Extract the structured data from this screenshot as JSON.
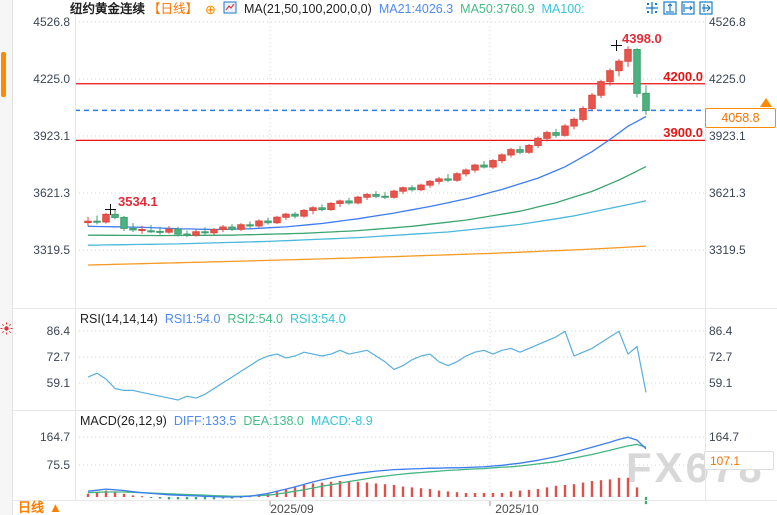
{
  "header": {
    "title": "纽约黄金连续",
    "period": "【日线】",
    "plus": "⊕",
    "ma_settings": "MA(21,50,100,200,0,0)",
    "ma21": "MA21:4026.3",
    "ma50": "MA50:3760.9",
    "ma100": "MA100:"
  },
  "toolbar": {
    "icons": [
      "crosshair",
      "fit-vertical",
      "fit-horizontal",
      "pan-right"
    ]
  },
  "sidebar": {
    "icons": [
      "orange-marker-bar",
      "sun-badge"
    ]
  },
  "rsi_header": {
    "name": "RSI(14,14,14)",
    "rsi1": "RSI1:54.0",
    "rsi2": "RSI2:54.0",
    "rsi3": "RSI3:54.0"
  },
  "macd_header": {
    "name": "MACD(26,12,9)",
    "diff": "DIFF:133.5",
    "dea": "DEA:138.0",
    "macd": "MACD:-8.9"
  },
  "axes": {
    "price": [
      "4526.8",
      "4225.0",
      "3923.1",
      "3621.3",
      "3319.5"
    ],
    "rsi": [
      "86.4",
      "72.7",
      "59.1"
    ],
    "macd_left": [
      "164.7",
      "75.5"
    ],
    "macd_right": [
      "164.7"
    ],
    "dates": [
      "2025/09",
      "2025/10"
    ]
  },
  "annotations": {
    "peak_price": "4398.0",
    "early_peak_price": "3534.1",
    "upper_line_price": "4200.0",
    "lower_line_price": "3900.0",
    "current_price": "4058.8",
    "macd_highlight": "107.1"
  },
  "footer": {
    "tab": "日线",
    "arrow": "▲"
  },
  "watermark": "FX678",
  "colors": {
    "up": "#e8534c",
    "up_stroke": "#dc4840",
    "down": "#4cb27f",
    "down_stroke": "#3f9e6e",
    "ma21": "#3d7df0",
    "ma50": "#3aa56f",
    "ma100": "#49b8dc",
    "ma200": "#f59a23",
    "sr_line": "#ee1212",
    "current_dashed": "#2b7de9",
    "accent_orange": "#ff8a00",
    "rsi_line": "#58aede",
    "macd_diff": "#3d7df0",
    "macd_dea": "#43b581",
    "hist_pos": "#e0504a",
    "hist_neg": "#43a86f",
    "grid": "#d4d4d4"
  },
  "chart_data": {
    "type": "candlestick",
    "title": "纽约黄金连续 日线",
    "price_axis_ticks": [
      4526.8,
      4225.0,
      3923.1,
      3621.3,
      3319.5
    ],
    "rsi_axis_ticks": [
      86.4,
      72.7,
      59.1
    ],
    "macd_axis_ticks": [
      164.7,
      75.5
    ],
    "x_tick_labels": [
      "2025/09",
      "2025/10"
    ],
    "horizontal_lines": [
      4200.0,
      3900.0
    ],
    "current_price_line": 4058.8,
    "marked_highs": [
      {
        "index": 3,
        "price": 3534.1
      },
      {
        "index": 60,
        "price": 4398.0
      }
    ],
    "candles_ohlc": [
      [
        3465,
        3495,
        3445,
        3472
      ],
      [
        3472,
        3502,
        3455,
        3468
      ],
      [
        3468,
        3516,
        3460,
        3508
      ],
      [
        3508,
        3534,
        3482,
        3492
      ],
      [
        3492,
        3500,
        3420,
        3434
      ],
      [
        3434,
        3462,
        3415,
        3426
      ],
      [
        3426,
        3448,
        3405,
        3428
      ],
      [
        3421,
        3452,
        3410,
        3418
      ],
      [
        3418,
        3442,
        3400,
        3414
      ],
      [
        3414,
        3446,
        3406,
        3430
      ],
      [
        3430,
        3442,
        3392,
        3404
      ],
      [
        3404,
        3422,
        3388,
        3398
      ],
      [
        3398,
        3428,
        3390,
        3416
      ],
      [
        3416,
        3440,
        3400,
        3411
      ],
      [
        3411,
        3436,
        3398,
        3428
      ],
      [
        3428,
        3452,
        3414,
        3441
      ],
      [
        3441,
        3456,
        3420,
        3429
      ],
      [
        3429,
        3462,
        3421,
        3453
      ],
      [
        3453,
        3471,
        3434,
        3447
      ],
      [
        3447,
        3481,
        3439,
        3473
      ],
      [
        3473,
        3491,
        3454,
        3464
      ],
      [
        3464,
        3501,
        3457,
        3493
      ],
      [
        3493,
        3516,
        3479,
        3509
      ],
      [
        3509,
        3521,
        3487,
        3499
      ],
      [
        3499,
        3536,
        3491,
        3529
      ],
      [
        3529,
        3551,
        3509,
        3543
      ],
      [
        3543,
        3561,
        3524,
        3534
      ],
      [
        3534,
        3573,
        3527,
        3566
      ],
      [
        3566,
        3586,
        3547,
        3579
      ],
      [
        3579,
        3596,
        3559,
        3569
      ],
      [
        3569,
        3606,
        3561,
        3599
      ],
      [
        3599,
        3621,
        3584,
        3613
      ],
      [
        3613,
        3631,
        3594,
        3604
      ],
      [
        3604,
        3626,
        3589,
        3599
      ],
      [
        3599,
        3639,
        3591,
        3631
      ],
      [
        3631,
        3656,
        3617,
        3649
      ],
      [
        3649,
        3663,
        3629,
        3639
      ],
      [
        3639,
        3671,
        3631,
        3663
      ],
      [
        3663,
        3691,
        3649,
        3683
      ],
      [
        3683,
        3706,
        3667,
        3696
      ],
      [
        3696,
        3721,
        3679,
        3689
      ],
      [
        3689,
        3731,
        3681,
        3723
      ],
      [
        3723,
        3751,
        3709,
        3743
      ],
      [
        3743,
        3776,
        3729,
        3769
      ],
      [
        3769,
        3791,
        3751,
        3759
      ],
      [
        3759,
        3801,
        3749,
        3793
      ],
      [
        3793,
        3831,
        3779,
        3823
      ],
      [
        3823,
        3861,
        3809,
        3851
      ],
      [
        3851,
        3871,
        3827,
        3837
      ],
      [
        3837,
        3881,
        3829,
        3873
      ],
      [
        3873,
        3921,
        3859,
        3911
      ],
      [
        3911,
        3951,
        3894,
        3941
      ],
      [
        3941,
        3961,
        3914,
        3927
      ],
      [
        3927,
        3986,
        3919,
        3976
      ],
      [
        3976,
        4021,
        3959,
        4011
      ],
      [
        4011,
        4081,
        3999,
        4069
      ],
      [
        4069,
        4151,
        4054,
        4139
      ],
      [
        4139,
        4221,
        4124,
        4211
      ],
      [
        4211,
        4281,
        4189,
        4269
      ],
      [
        4269,
        4331,
        4239,
        4319
      ],
      [
        4319,
        4398,
        4289,
        4381
      ],
      [
        4381,
        4388,
        4128,
        4149
      ],
      [
        4149,
        4191,
        4036,
        4058.8
      ]
    ],
    "ma21_points": [
      [
        0,
        3445
      ],
      [
        6,
        3440
      ],
      [
        10,
        3432
      ],
      [
        14,
        3428
      ],
      [
        18,
        3432
      ],
      [
        22,
        3442
      ],
      [
        26,
        3460
      ],
      [
        30,
        3485
      ],
      [
        34,
        3515
      ],
      [
        38,
        3550
      ],
      [
        42,
        3590
      ],
      [
        46,
        3640
      ],
      [
        50,
        3700
      ],
      [
        53,
        3760
      ],
      [
        56,
        3840
      ],
      [
        58,
        3905
      ],
      [
        60,
        3975
      ],
      [
        62,
        4026.3
      ]
    ],
    "ma50_points": [
      [
        0,
        3398
      ],
      [
        8,
        3396
      ],
      [
        16,
        3398
      ],
      [
        24,
        3408
      ],
      [
        30,
        3422
      ],
      [
        36,
        3445
      ],
      [
        42,
        3478
      ],
      [
        48,
        3525
      ],
      [
        52,
        3570
      ],
      [
        56,
        3630
      ],
      [
        59,
        3690
      ],
      [
        62,
        3760.9
      ]
    ],
    "ma100_points": [
      [
        0,
        3345
      ],
      [
        10,
        3352
      ],
      [
        20,
        3365
      ],
      [
        30,
        3385
      ],
      [
        40,
        3415
      ],
      [
        48,
        3455
      ],
      [
        54,
        3500
      ],
      [
        58,
        3540
      ],
      [
        62,
        3580
      ]
    ],
    "ma200_points": [
      [
        0,
        3240
      ],
      [
        15,
        3258
      ],
      [
        30,
        3278
      ],
      [
        45,
        3302
      ],
      [
        55,
        3322
      ],
      [
        62,
        3340
      ]
    ],
    "rsi_values": [
      62,
      64,
      61,
      56,
      55,
      55,
      54,
      53,
      52,
      51,
      50,
      52,
      51,
      53,
      56,
      59,
      62,
      65,
      68,
      71,
      73,
      74,
      72,
      73,
      75,
      74,
      73,
      74,
      76,
      74,
      75,
      76,
      73,
      70,
      66,
      68,
      71,
      73,
      74,
      70,
      68,
      70,
      73,
      75,
      76,
      74,
      76,
      77,
      75,
      77,
      79,
      81,
      83,
      86,
      73,
      75,
      77,
      80,
      83,
      86,
      74,
      78,
      54
    ],
    "macd_diff": [
      16,
      19,
      22,
      20,
      18,
      15,
      12,
      10,
      8,
      6,
      5,
      4,
      3,
      2,
      1,
      0,
      0,
      1,
      2,
      6,
      10,
      16,
      22,
      28,
      35,
      42,
      48,
      53,
      58,
      62,
      66,
      69,
      72,
      74,
      76,
      77,
      78,
      79,
      80,
      80,
      81,
      81,
      82,
      83,
      84,
      86,
      88,
      91,
      94,
      98,
      102,
      107,
      112,
      118,
      124,
      131,
      138,
      145,
      152,
      160,
      166,
      158,
      133.5
    ],
    "macd_dea": [
      12,
      13,
      14,
      14,
      14,
      13,
      12,
      11,
      10,
      9,
      8,
      7,
      6,
      5,
      4,
      3,
      2,
      2,
      3,
      4,
      5,
      8,
      12,
      16,
      20,
      25,
      30,
      34,
      38,
      43,
      47,
      51,
      55,
      58,
      61,
      64,
      66,
      68,
      70,
      72,
      74,
      75,
      77,
      78,
      79,
      81,
      83,
      84,
      86,
      89,
      92,
      95,
      98,
      103,
      108,
      113,
      118,
      124,
      130,
      136,
      142,
      146,
      138
    ],
    "macd_hist": [
      4,
      6,
      8,
      6,
      4,
      2,
      1,
      -1,
      -2,
      -3,
      -3,
      -3,
      -3,
      -3,
      -3,
      -2,
      -2,
      -1,
      1,
      2,
      5,
      8,
      10,
      12,
      15,
      17,
      18,
      19,
      20,
      19,
      19,
      18,
      17,
      16,
      15,
      13,
      12,
      11,
      10,
      8,
      7,
      6,
      5,
      5,
      5,
      5,
      5,
      7,
      8,
      9,
      10,
      12,
      14,
      15,
      16,
      18,
      20,
      21,
      22,
      24,
      24,
      12,
      -8.9
    ]
  }
}
